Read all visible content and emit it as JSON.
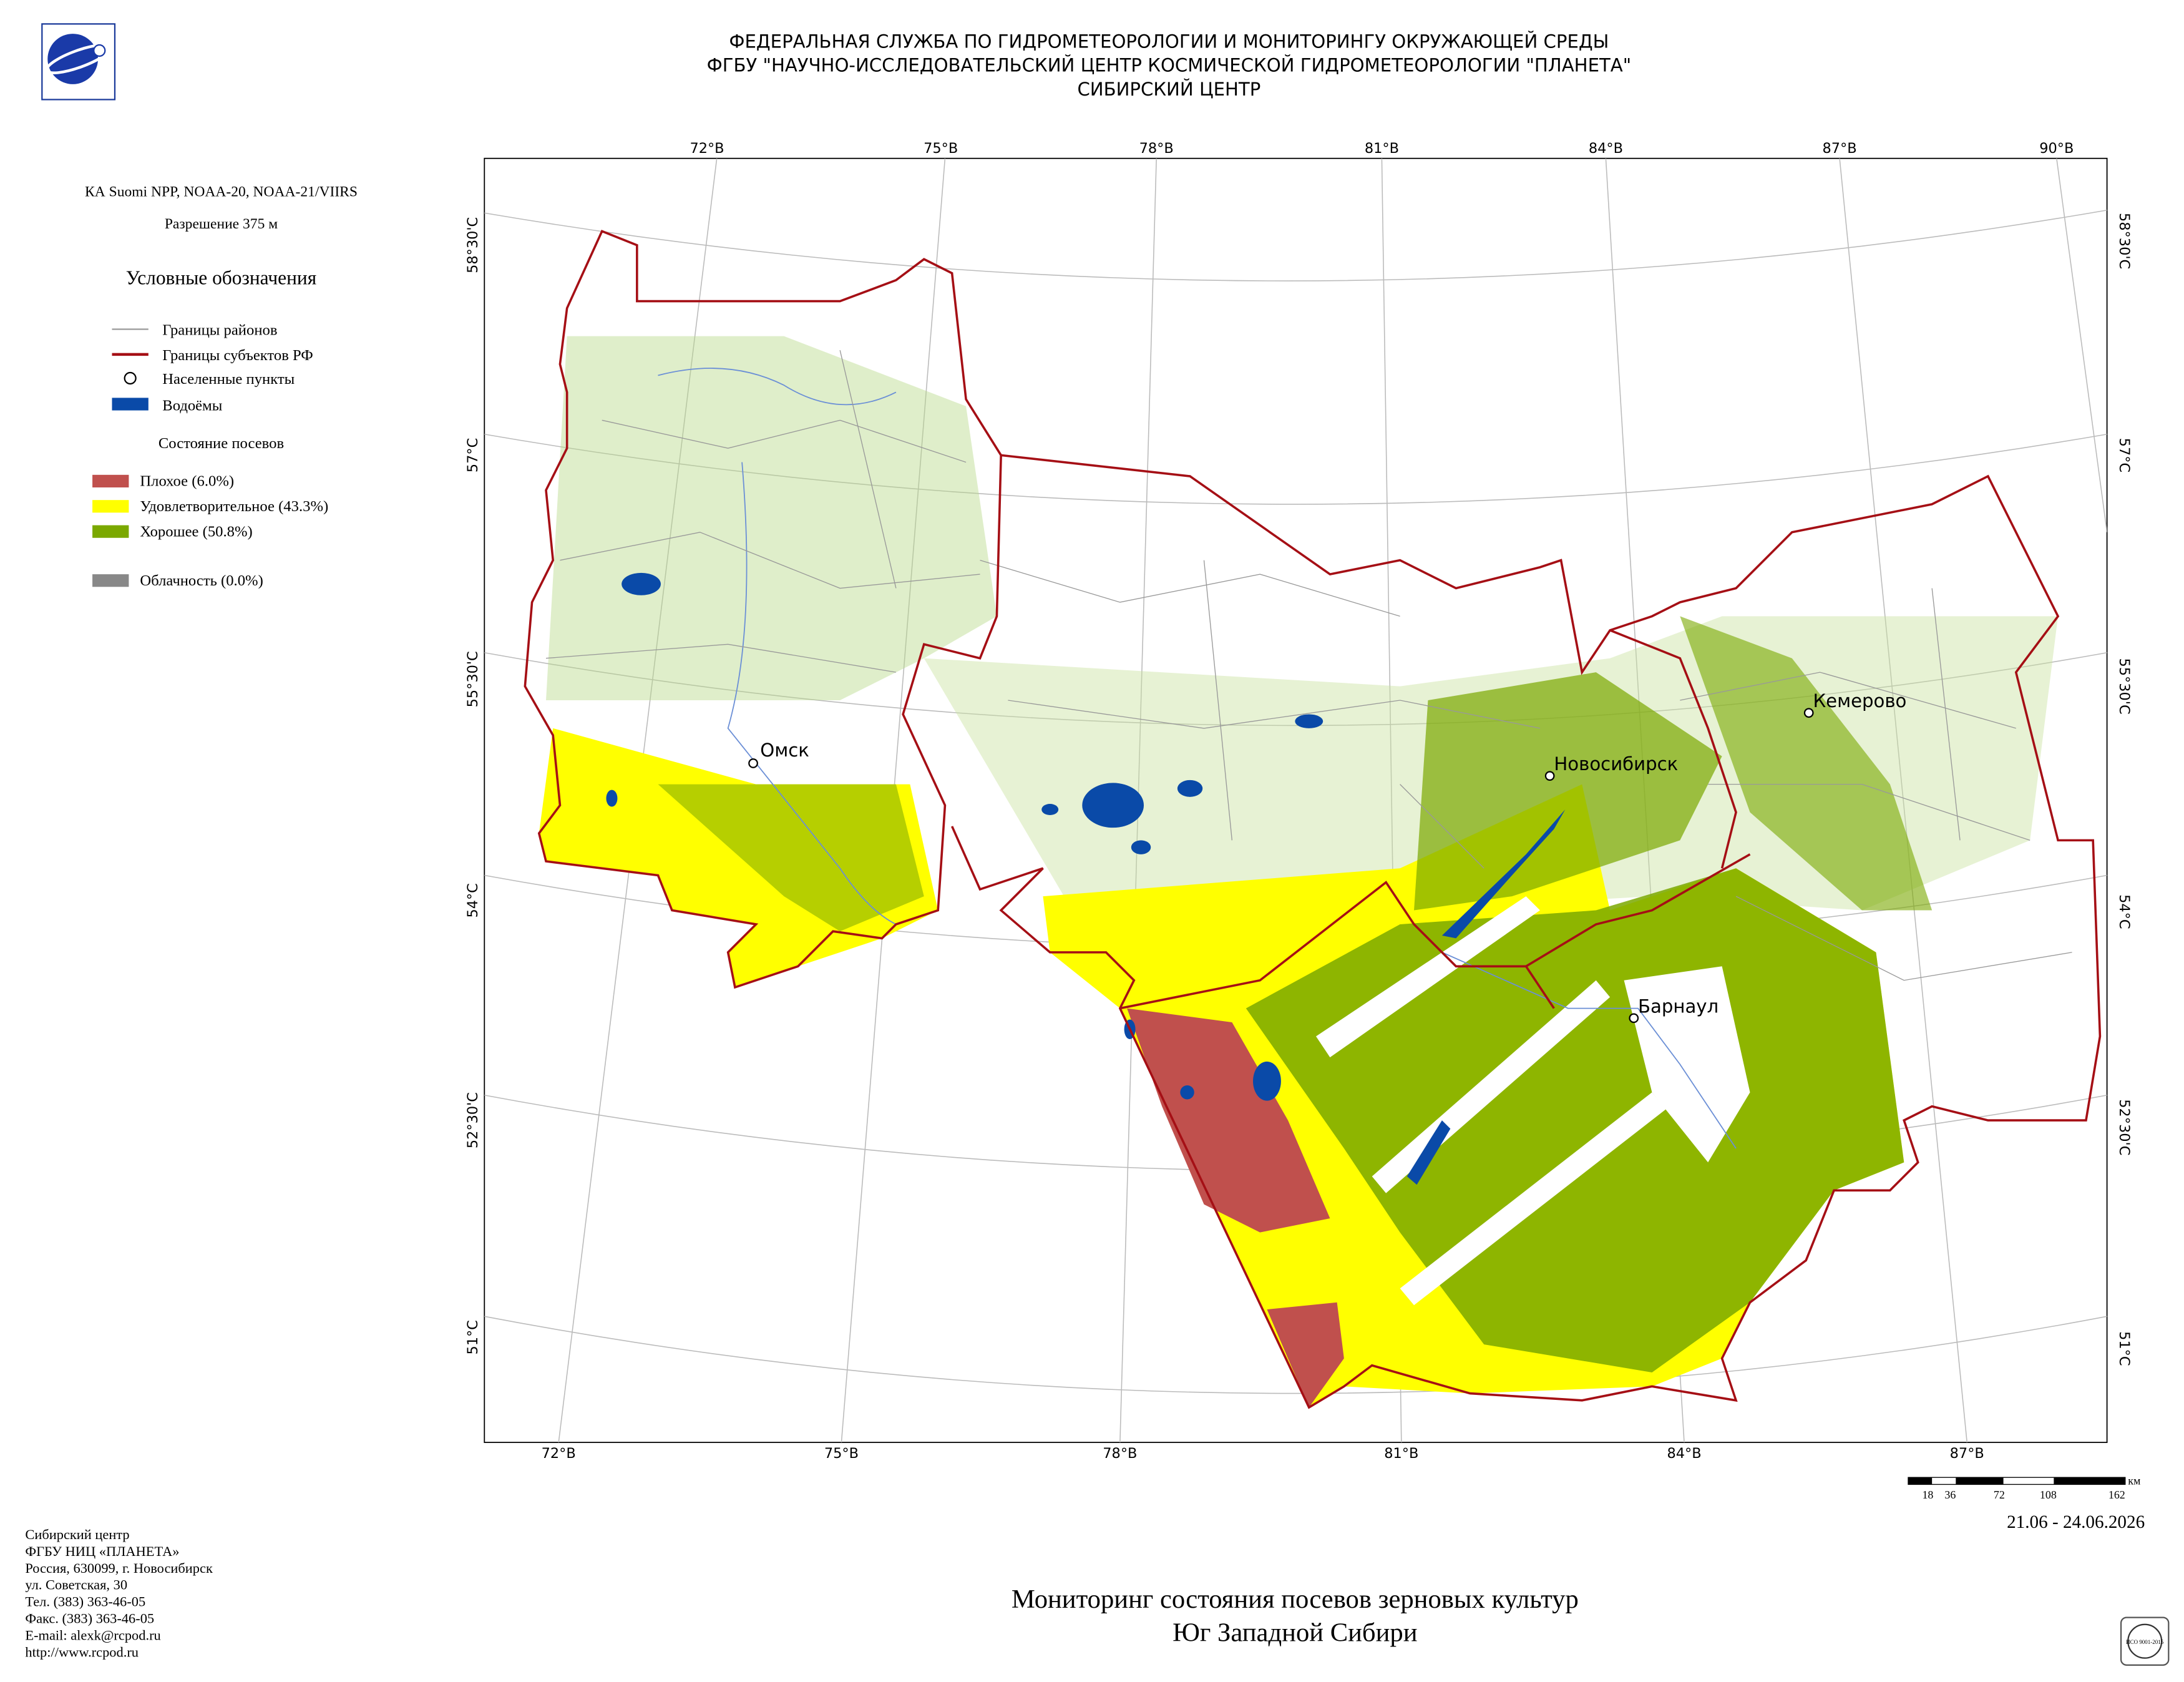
{
  "header": {
    "lines": [
      "ФЕДЕРАЛЬНАЯ СЛУЖБА ПО ГИДРОМЕТЕОРОЛОГИИ И МОНИТОРИНГУ ОКРУЖАЮЩЕЙ СРЕДЫ",
      "ФГБУ \"НАУЧНО-ИССЛЕДОВАТЕЛЬСКИЙ ЦЕНТР КОСМИЧЕСКОЙ ГИДРОМЕТЕОРОЛОГИИ \"ПЛАНЕТА\"",
      "СИБИРСКИЙ ЦЕНТР"
    ]
  },
  "left_panel": {
    "satellite": "КА Suomi NPP, NOAA-20, NOAA-21/VIIRS",
    "resolution": "Разрешение 375 м",
    "legend_title": "Условные обозначения",
    "legend_items": [
      "Границы районов",
      "Границы субъектов РФ",
      "Населенные пункты",
      "Водоёмы"
    ],
    "crops_title": "Состояние посевов",
    "crop_items": [
      "Плохое (6.0%)",
      "Удовлетворительное (43.3%)",
      "Хорошее (50.8%)"
    ],
    "cloud_item": "Облачность (0.0%)"
  },
  "map": {
    "lon_top": [
      "72°В",
      "75°В",
      "78°В",
      "81°В",
      "84°В",
      "87°В",
      "90°В"
    ],
    "lon_bottom": [
      "72°В",
      "75°В",
      "78°В",
      "81°В",
      "84°В",
      "87°В"
    ],
    "lat_left": [
      "58°30'С",
      "57°С",
      "55°30'С",
      "54°С",
      "52°30'С",
      "51°С"
    ],
    "lat_right": [
      "58°30'С",
      "57°С",
      "55°30'С",
      "54°С",
      "52°30'С",
      "51°С"
    ],
    "cities": [
      "Омск",
      "Новосибирск",
      "Кемерово",
      "Барнаул"
    ]
  },
  "scale_bar": {
    "labels": [
      "18",
      "36",
      "72",
      "108",
      "162"
    ],
    "unit": "км"
  },
  "date": "21.06 - 24.06.2026",
  "title": {
    "lines": [
      "Мониторинг состояния посевов зерновых культур",
      "Юг Западной Сибири"
    ]
  },
  "contacts": [
    "Сибирский центр",
    "ФГБУ НИЦ «ПЛАНЕТА»",
    "Россия, 630099, г. Новосибирск",
    "ул. Советская, 30",
    "Тел. (383) 363-46-05",
    "Факс. (383) 363-46-05",
    "E-mail: alexk@rcpod.ru",
    "http://www.rcpod.ru"
  ],
  "iso_badge": "ИСО 9001-2015"
}
